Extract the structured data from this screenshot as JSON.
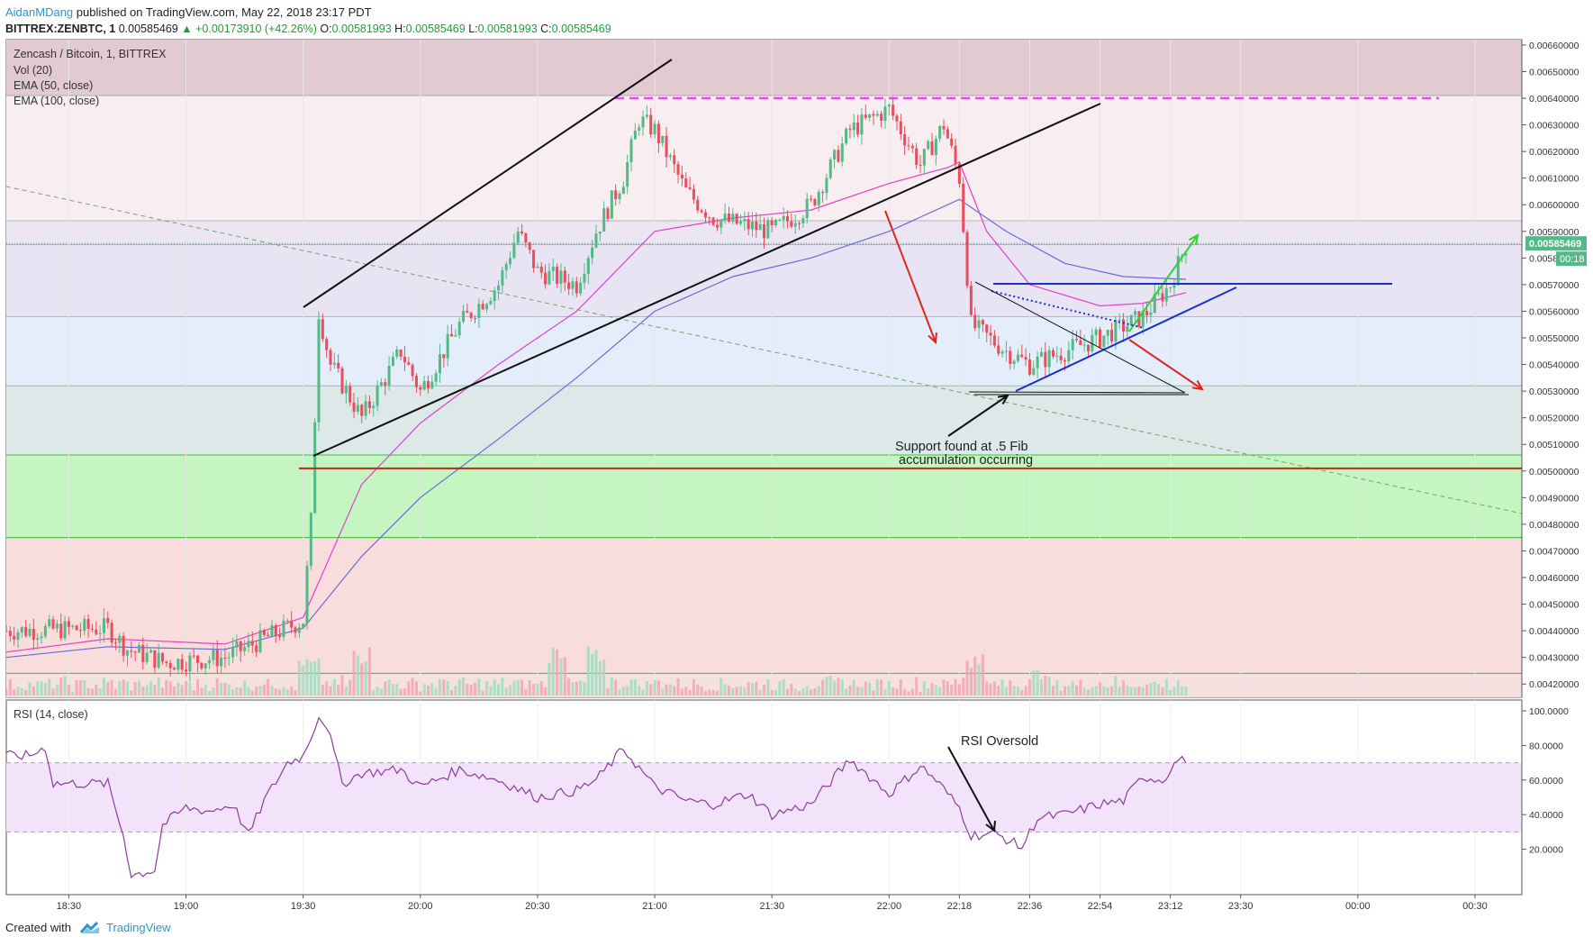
{
  "header": {
    "author": "AidanMDang",
    "published_text": " published on TradingView.com, May 22, 2018 23:17 PDT",
    "symbol": "BITTREX:ZENBTC, 1",
    "price": "0.00585469",
    "change": "▲ +0.00173910 (+42.26%)",
    "open_label": "O:",
    "open": "0.00581993",
    "high_label": "H:",
    "high": "0.00585469",
    "low_label": "L:",
    "low": "0.00581993",
    "close_label": "C:",
    "close": "0.00585469"
  },
  "legend": {
    "title": "Zencash / Bitcoin, 1, BITTREX",
    "vol": "Vol (20)",
    "ema50": "EMA (50, close)",
    "ema100": "EMA (100, close)"
  },
  "rsi_legend": "RSI (14, close)",
  "footer": {
    "created": "Created with",
    "brand": "TradingView"
  },
  "price_badge": "0.00585469",
  "timer_badge": "00:18",
  "annotations": {
    "support_line1": "Support found at .5 Fib",
    "support_line2": "accumulation occurring",
    "rsi": "RSI Oversold"
  },
  "colors": {
    "up": "#53b987",
    "down": "#eb4d5c",
    "ema50": "#e040c8",
    "ema100": "#6a6ad8",
    "rsi": "#8e3aa0",
    "fib_green": "#b7f2b3",
    "fib_red": "#f7d0d0",
    "fib_purple": "#e8d7dd",
    "support_red_line": "#c0281e",
    "magenta_dash": "#ff3df2"
  },
  "chart_data": [
    {
      "type": "candlestick",
      "title": "Zencash / Bitcoin, 1, BITTREX",
      "x_ticks": [
        "18:30",
        "19:00",
        "19:30",
        "20:00",
        "20:30",
        "21:00",
        "21:30",
        "22:00",
        "22:18",
        "22:36",
        "22:54",
        "23:12",
        "23:30",
        "00:00",
        "00:30"
      ],
      "y_ticks": [
        "0.00660000",
        "0.00650000",
        "0.00640000",
        "0.00630000",
        "0.00620000",
        "0.00610000",
        "0.00600000",
        "0.00590000",
        "0.00580000",
        "0.00570000",
        "0.00560000",
        "0.00550000",
        "0.00540000",
        "0.00530000",
        "0.00520000",
        "0.00510000",
        "0.00500000",
        "0.00490000",
        "0.00480000",
        "0.00470000",
        "0.00460000",
        "0.00450000",
        "0.00440000",
        "0.00430000",
        "0.00420000"
      ],
      "ylim": [
        0.00415,
        0.00662
      ],
      "last_price": 0.00585469,
      "fib_levels": [
        0.00641,
        0.00594,
        0.00585,
        0.00558,
        0.00532,
        0.00506,
        0.00475,
        0.00424
      ],
      "support_level": 0.00501,
      "resistance_level": 0.0064,
      "close_path": [
        [
          "18:14",
          0.0044
        ],
        [
          "18:40",
          0.00441
        ],
        [
          "18:45",
          0.00433
        ],
        [
          "18:55",
          0.00428
        ],
        [
          "19:10",
          0.0043
        ],
        [
          "19:20",
          0.00437
        ],
        [
          "19:30",
          0.00444
        ],
        [
          "19:32",
          0.00481
        ],
        [
          "19:34",
          0.0056
        ],
        [
          "19:37",
          0.0054
        ],
        [
          "19:45",
          0.0052
        ],
        [
          "19:55",
          0.00545
        ],
        [
          "20:00",
          0.0053
        ],
        [
          "20:10",
          0.00555
        ],
        [
          "20:20",
          0.0057
        ],
        [
          "20:25",
          0.0059
        ],
        [
          "20:30",
          0.00575
        ],
        [
          "20:40",
          0.0057
        ],
        [
          "20:45",
          0.0059
        ],
        [
          "20:52",
          0.0061
        ],
        [
          "20:56",
          0.00632
        ],
        [
          "21:00",
          0.00628
        ],
        [
          "21:08",
          0.00605
        ],
        [
          "21:15",
          0.00595
        ],
        [
          "21:30",
          0.0059
        ],
        [
          "21:40",
          0.006
        ],
        [
          "21:50",
          0.00628
        ],
        [
          "22:00",
          0.00636
        ],
        [
          "22:08",
          0.00615
        ],
        [
          "22:14",
          0.0063
        ],
        [
          "22:18",
          0.0061
        ],
        [
          "22:21",
          0.00555
        ],
        [
          "22:30",
          0.00545
        ],
        [
          "22:36",
          0.0054
        ],
        [
          "22:45",
          0.00545
        ],
        [
          "22:54",
          0.0055
        ],
        [
          "23:05",
          0.00558
        ],
        [
          "23:12",
          0.0057
        ],
        [
          "23:16",
          0.00585
        ]
      ],
      "ema50_path": [
        [
          "18:14",
          0.00432
        ],
        [
          "18:40",
          0.00437
        ],
        [
          "19:10",
          0.00435
        ],
        [
          "19:30",
          0.00445
        ],
        [
          "19:45",
          0.00495
        ],
        [
          "20:00",
          0.00518
        ],
        [
          "20:20",
          0.0054
        ],
        [
          "20:40",
          0.0056
        ],
        [
          "21:00",
          0.0059
        ],
        [
          "21:20",
          0.00595
        ],
        [
          "21:40",
          0.00598
        ],
        [
          "22:00",
          0.00608
        ],
        [
          "22:15",
          0.00614
        ],
        [
          "22:18",
          0.00616
        ],
        [
          "22:25",
          0.0059
        ],
        [
          "22:36",
          0.0057
        ],
        [
          "22:54",
          0.00562
        ],
        [
          "23:05",
          0.00563
        ],
        [
          "23:16",
          0.00567
        ]
      ],
      "ema100_path": [
        [
          "18:14",
          0.0043
        ],
        [
          "18:40",
          0.00434
        ],
        [
          "19:10",
          0.00433
        ],
        [
          "19:30",
          0.00441
        ],
        [
          "19:45",
          0.00468
        ],
        [
          "20:00",
          0.0049
        ],
        [
          "20:20",
          0.00512
        ],
        [
          "20:40",
          0.00535
        ],
        [
          "21:00",
          0.0056
        ],
        [
          "21:20",
          0.00573
        ],
        [
          "21:40",
          0.0058
        ],
        [
          "22:00",
          0.0059
        ],
        [
          "22:18",
          0.00602
        ],
        [
          "22:30",
          0.0059
        ],
        [
          "22:45",
          0.00578
        ],
        [
          "23:00",
          0.00573
        ],
        [
          "23:16",
          0.00572
        ]
      ],
      "volume": {
        "series_name": "Vol (20)",
        "note": "relative bar heights",
        "spikes": [
          [
            "19:31",
            0.55
          ],
          [
            "19:45",
            0.75
          ],
          [
            "20:35",
            0.8
          ],
          [
            "20:45",
            0.75
          ],
          [
            "22:22",
            0.65
          ],
          [
            "22:38",
            0.4
          ]
        ]
      }
    },
    {
      "type": "line",
      "title": "RSI (14, close)",
      "y_ticks": [
        "100.0000",
        "80.0000",
        "60.0000",
        "40.0000",
        "20.0000"
      ],
      "ylim": [
        0,
        100
      ],
      "bands": [
        30,
        70
      ],
      "series": [
        {
          "name": "RSI (14, close)",
          "points": [
            [
              "18:14",
              74
            ],
            [
              "18:20",
              74
            ],
            [
              "18:24",
              79
            ],
            [
              "18:26",
              58
            ],
            [
              "18:40",
              58
            ],
            [
              "18:44",
              28
            ],
            [
              "18:46",
              5
            ],
            [
              "18:52",
              8
            ],
            [
              "18:54",
              34
            ],
            [
              "19:00",
              44
            ],
            [
              "19:06",
              42
            ],
            [
              "19:12",
              46
            ],
            [
              "19:16",
              28
            ],
            [
              "19:20",
              48
            ],
            [
              "19:26",
              70
            ],
            [
              "19:30",
              74
            ],
            [
              "19:34",
              97
            ],
            [
              "19:36",
              92
            ],
            [
              "19:40",
              58
            ],
            [
              "19:45",
              64
            ],
            [
              "19:55",
              66
            ],
            [
              "20:00",
              56
            ],
            [
              "20:10",
              66
            ],
            [
              "20:20",
              60
            ],
            [
              "20:30",
              50
            ],
            [
              "20:40",
              54
            ],
            [
              "20:45",
              60
            ],
            [
              "20:52",
              78
            ],
            [
              "21:00",
              56
            ],
            [
              "21:08",
              48
            ],
            [
              "21:15",
              46
            ],
            [
              "21:24",
              52
            ],
            [
              "21:30",
              40
            ],
            [
              "21:40",
              46
            ],
            [
              "21:50",
              72
            ],
            [
              "22:00",
              52
            ],
            [
              "22:08",
              68
            ],
            [
              "22:12",
              60
            ],
            [
              "22:18",
              44
            ],
            [
              "22:21",
              28
            ],
            [
              "22:27",
              29
            ],
            [
              "22:30",
              26
            ],
            [
              "22:34",
              21
            ],
            [
              "22:38",
              38
            ],
            [
              "22:45",
              40
            ],
            [
              "22:54",
              46
            ],
            [
              "23:00",
              48
            ],
            [
              "23:05",
              62
            ],
            [
              "23:10",
              60
            ],
            [
              "23:14",
              72
            ],
            [
              "23:16",
              70
            ]
          ]
        }
      ]
    }
  ]
}
